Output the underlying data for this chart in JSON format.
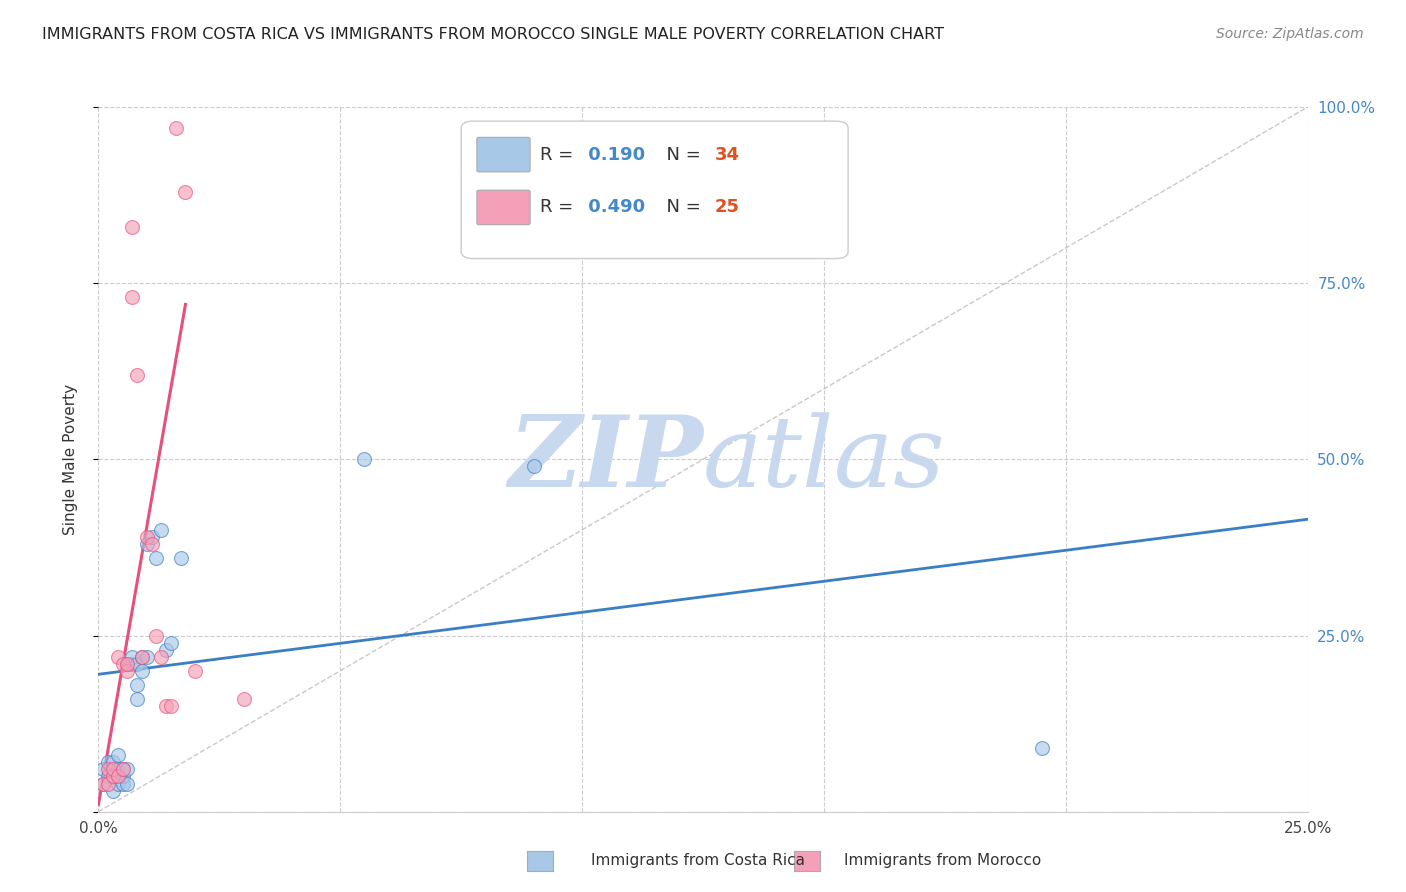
{
  "title": "IMMIGRANTS FROM COSTA RICA VS IMMIGRANTS FROM MOROCCO SINGLE MALE POVERTY CORRELATION CHART",
  "source": "Source: ZipAtlas.com",
  "ylabel": "Single Male Poverty",
  "legend_label1": "Immigrants from Costa Rica",
  "legend_label2": "Immigrants from Morocco",
  "R1": 0.19,
  "N1": 34,
  "R2": 0.49,
  "N2": 25,
  "color1": "#A8C8E8",
  "color2": "#F4A0B8",
  "line_color1": "#3A7EC6",
  "line_color2": "#E8507A",
  "xmin": 0.0,
  "xmax": 0.25,
  "ymin": 0.0,
  "ymax": 1.0,
  "xticks": [
    0.0,
    0.05,
    0.1,
    0.15,
    0.2,
    0.25
  ],
  "xtick_labels": [
    "0.0%",
    "",
    "",
    "",
    "",
    "25.0%"
  ],
  "yticks": [
    0.0,
    0.25,
    0.5,
    0.75,
    1.0
  ],
  "ytick_labels_right": [
    "",
    "25.0%",
    "50.0%",
    "75.0%",
    "100.0%"
  ],
  "scatter_costa_rica_x": [
    0.001,
    0.001,
    0.002,
    0.002,
    0.003,
    0.003,
    0.003,
    0.004,
    0.004,
    0.004,
    0.005,
    0.005,
    0.005,
    0.006,
    0.006,
    0.006,
    0.007,
    0.007,
    0.008,
    0.008,
    0.008,
    0.009,
    0.009,
    0.01,
    0.01,
    0.011,
    0.012,
    0.013,
    0.014,
    0.015,
    0.017,
    0.055,
    0.09,
    0.195
  ],
  "scatter_costa_rica_y": [
    0.04,
    0.06,
    0.05,
    0.07,
    0.03,
    0.05,
    0.07,
    0.04,
    0.06,
    0.08,
    0.04,
    0.05,
    0.06,
    0.04,
    0.06,
    0.21,
    0.21,
    0.22,
    0.18,
    0.21,
    0.16,
    0.22,
    0.2,
    0.22,
    0.38,
    0.39,
    0.36,
    0.4,
    0.23,
    0.24,
    0.36,
    0.5,
    0.49,
    0.09
  ],
  "scatter_morocco_x": [
    0.001,
    0.002,
    0.002,
    0.003,
    0.003,
    0.004,
    0.004,
    0.005,
    0.005,
    0.006,
    0.006,
    0.007,
    0.007,
    0.008,
    0.009,
    0.01,
    0.011,
    0.012,
    0.013,
    0.014,
    0.015,
    0.016,
    0.018,
    0.02,
    0.03
  ],
  "scatter_morocco_y": [
    0.04,
    0.04,
    0.06,
    0.05,
    0.06,
    0.05,
    0.22,
    0.06,
    0.21,
    0.2,
    0.21,
    0.83,
    0.73,
    0.62,
    0.22,
    0.39,
    0.38,
    0.25,
    0.22,
    0.15,
    0.15,
    0.97,
    0.88,
    0.2,
    0.16
  ],
  "line1_x": [
    0.0,
    0.25
  ],
  "line1_y": [
    0.195,
    0.415
  ],
  "line2_x": [
    0.0,
    0.018
  ],
  "line2_y": [
    0.01,
    0.72
  ],
  "diag_line_x": [
    0.0,
    0.25
  ],
  "diag_line_y": [
    0.0,
    1.0
  ],
  "watermark_zip": "ZIP",
  "watermark_atlas": "atlas",
  "watermark_color": "#C8D8EE",
  "background_color": "#FFFFFF",
  "grid_color": "#CCCCCC"
}
